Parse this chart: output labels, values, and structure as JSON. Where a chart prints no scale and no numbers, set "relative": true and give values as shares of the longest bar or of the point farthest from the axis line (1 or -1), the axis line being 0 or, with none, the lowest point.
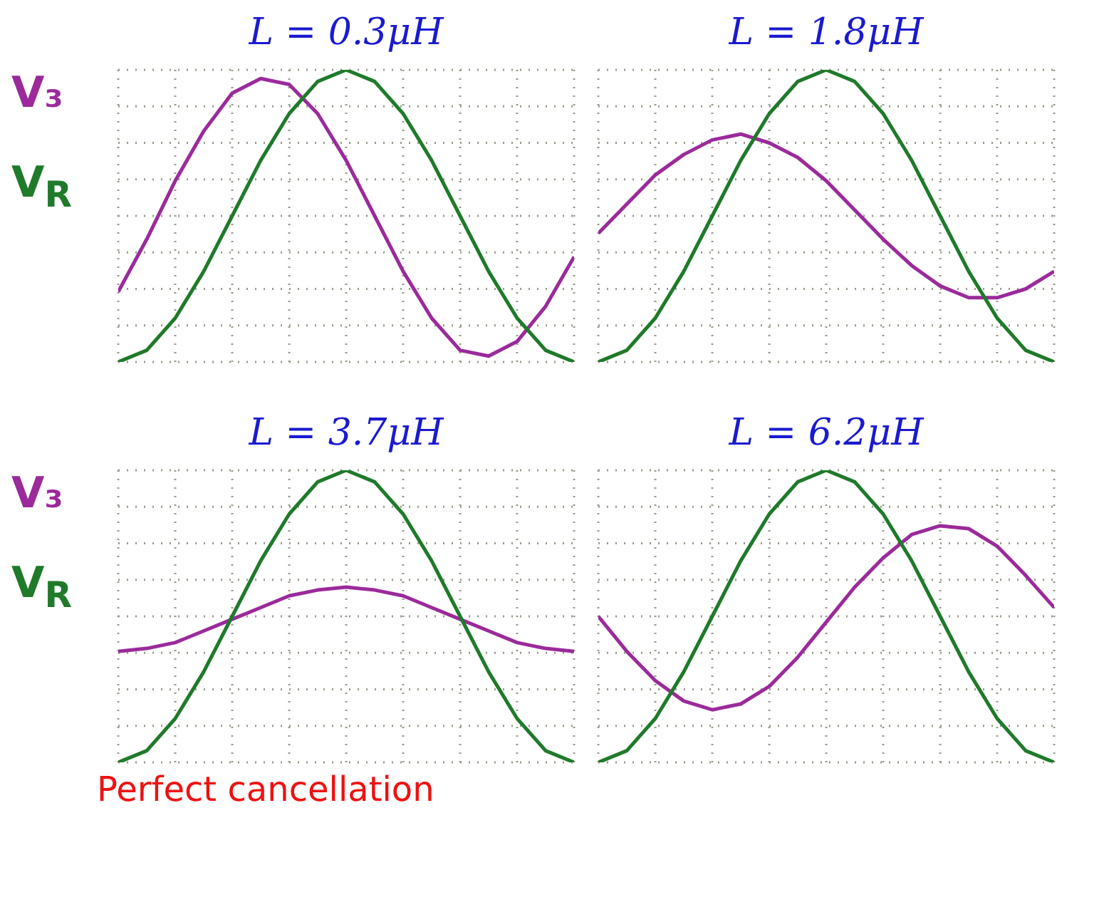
{
  "chart_data": [
    {
      "type": "line",
      "title": "L = 0.3μH",
      "relative": true,
      "grid": true,
      "legend": "left",
      "tick_labels": false,
      "marker": "none",
      "line_style": "solid",
      "categories": [
        null,
        null,
        null,
        null,
        null,
        null,
        null,
        null,
        null,
        null,
        null,
        null,
        null,
        null,
        null,
        null,
        null
      ],
      "series": [
        {
          "name": "V₃",
          "color": "#9b2a9b",
          "values": [
            0.24,
            0.42,
            0.62,
            0.79,
            0.92,
            0.97,
            0.95,
            0.85,
            0.69,
            0.5,
            0.31,
            0.15,
            0.04,
            0.02,
            0.07,
            0.19,
            0.36
          ]
        },
        {
          "name": "V$_{R}$",
          "color": "#1f7a2a",
          "values": [
            0,
            0.04,
            0.15,
            0.31,
            0.5,
            0.69,
            0.85,
            0.96,
            1,
            0.96,
            0.85,
            0.69,
            0.5,
            0.31,
            0.15,
            0.04,
            0
          ]
        }
      ]
    },
    {
      "type": "line",
      "title": "L = 1.8μH",
      "relative": true,
      "grid": true,
      "tick_labels": false,
      "marker": "none",
      "line_style": "solid",
      "categories": [
        null,
        null,
        null,
        null,
        null,
        null,
        null,
        null,
        null,
        null,
        null,
        null,
        null,
        null,
        null,
        null,
        null
      ],
      "series": [
        {
          "color": "#9b2a9b",
          "values": [
            0.44,
            0.54,
            0.64,
            0.71,
            0.76,
            0.78,
            0.75,
            0.7,
            0.62,
            0.52,
            0.42,
            0.33,
            0.26,
            0.22,
            0.22,
            0.25,
            0.31
          ]
        },
        {
          "color": "#1f7a2a",
          "values": [
            0,
            0.04,
            0.15,
            0.31,
            0.5,
            0.69,
            0.85,
            0.96,
            1,
            0.96,
            0.85,
            0.69,
            0.5,
            0.31,
            0.15,
            0.04,
            0
          ]
        }
      ]
    },
    {
      "type": "line",
      "title": "L = 3.7μH",
      "relative": true,
      "grid": true,
      "legend": "left",
      "tick_labels": false,
      "marker": "none",
      "line_style": "solid",
      "annotations": [
        "Perfect cancellation"
      ],
      "categories": [
        null,
        null,
        null,
        null,
        null,
        null,
        null,
        null,
        null,
        null,
        null,
        null,
        null,
        null,
        null,
        null,
        null
      ],
      "series": [
        {
          "name": "V₃",
          "color": "#9b2a9b",
          "values": [
            0.38,
            0.39,
            0.41,
            0.45,
            0.49,
            0.53,
            0.57,
            0.59,
            0.6,
            0.59,
            0.57,
            0.53,
            0.49,
            0.45,
            0.41,
            0.39,
            0.38
          ]
        },
        {
          "name": "V$_{R}$",
          "color": "#1f7a2a",
          "values": [
            0,
            0.04,
            0.15,
            0.31,
            0.5,
            0.69,
            0.85,
            0.96,
            1,
            0.96,
            0.85,
            0.69,
            0.5,
            0.31,
            0.15,
            0.04,
            0
          ]
        }
      ]
    },
    {
      "type": "line",
      "title": "L = 6.2μH",
      "relative": true,
      "grid": true,
      "tick_labels": false,
      "marker": "none",
      "line_style": "solid",
      "categories": [
        null,
        null,
        null,
        null,
        null,
        null,
        null,
        null,
        null,
        null,
        null,
        null,
        null,
        null,
        null,
        null,
        null
      ],
      "series": [
        {
          "color": "#9b2a9b",
          "values": [
            0.5,
            0.38,
            0.28,
            0.21,
            0.18,
            0.2,
            0.26,
            0.36,
            0.48,
            0.6,
            0.7,
            0.78,
            0.81,
            0.8,
            0.74,
            0.64,
            0.53
          ]
        },
        {
          "color": "#1f7a2a",
          "values": [
            0,
            0.04,
            0.15,
            0.31,
            0.5,
            0.69,
            0.85,
            0.96,
            1,
            0.96,
            0.85,
            0.69,
            0.5,
            0.31,
            0.15,
            0.04,
            0
          ]
        }
      ]
    }
  ]
}
